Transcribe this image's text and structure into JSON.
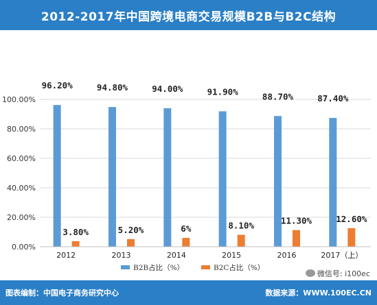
{
  "title": "2012-2017年中国跨境电商交易规模B2B与B2C结构",
  "footer": {
    "left": "图表编制：中国电子商务研究中心",
    "right": "数据来源：WWW.100EC.CN"
  },
  "watermark": "微信号: i100ec",
  "colors": {
    "b2b": "#5b9bd5",
    "b2c": "#ed7d31",
    "banner": "#2a7fc6"
  },
  "chart_data": {
    "type": "bar",
    "categories": [
      "2012",
      "2013",
      "2014",
      "2015",
      "2016",
      "2017（上）"
    ],
    "series": [
      {
        "name": "B2B占比（%）",
        "values": [
          96.2,
          94.8,
          94.0,
          91.9,
          88.7,
          87.4
        ],
        "labels": [
          "96.20%",
          "94.80%",
          "94.00%",
          "91.90%",
          "88.70%",
          "87.40%"
        ]
      },
      {
        "name": "B2C占比（%）",
        "values": [
          3.8,
          5.2,
          6.0,
          8.1,
          11.3,
          12.6
        ],
        "labels": [
          "3.80%",
          "5.20%",
          "6%",
          "8.10%",
          "11.30%",
          "12.60%"
        ]
      }
    ],
    "yticks": [
      "0.00%",
      "20.00%",
      "40.00%",
      "60.00%",
      "80.00%",
      "100.00%"
    ],
    "ylim": [
      0,
      100
    ],
    "grid": true,
    "legend": "bottom"
  }
}
